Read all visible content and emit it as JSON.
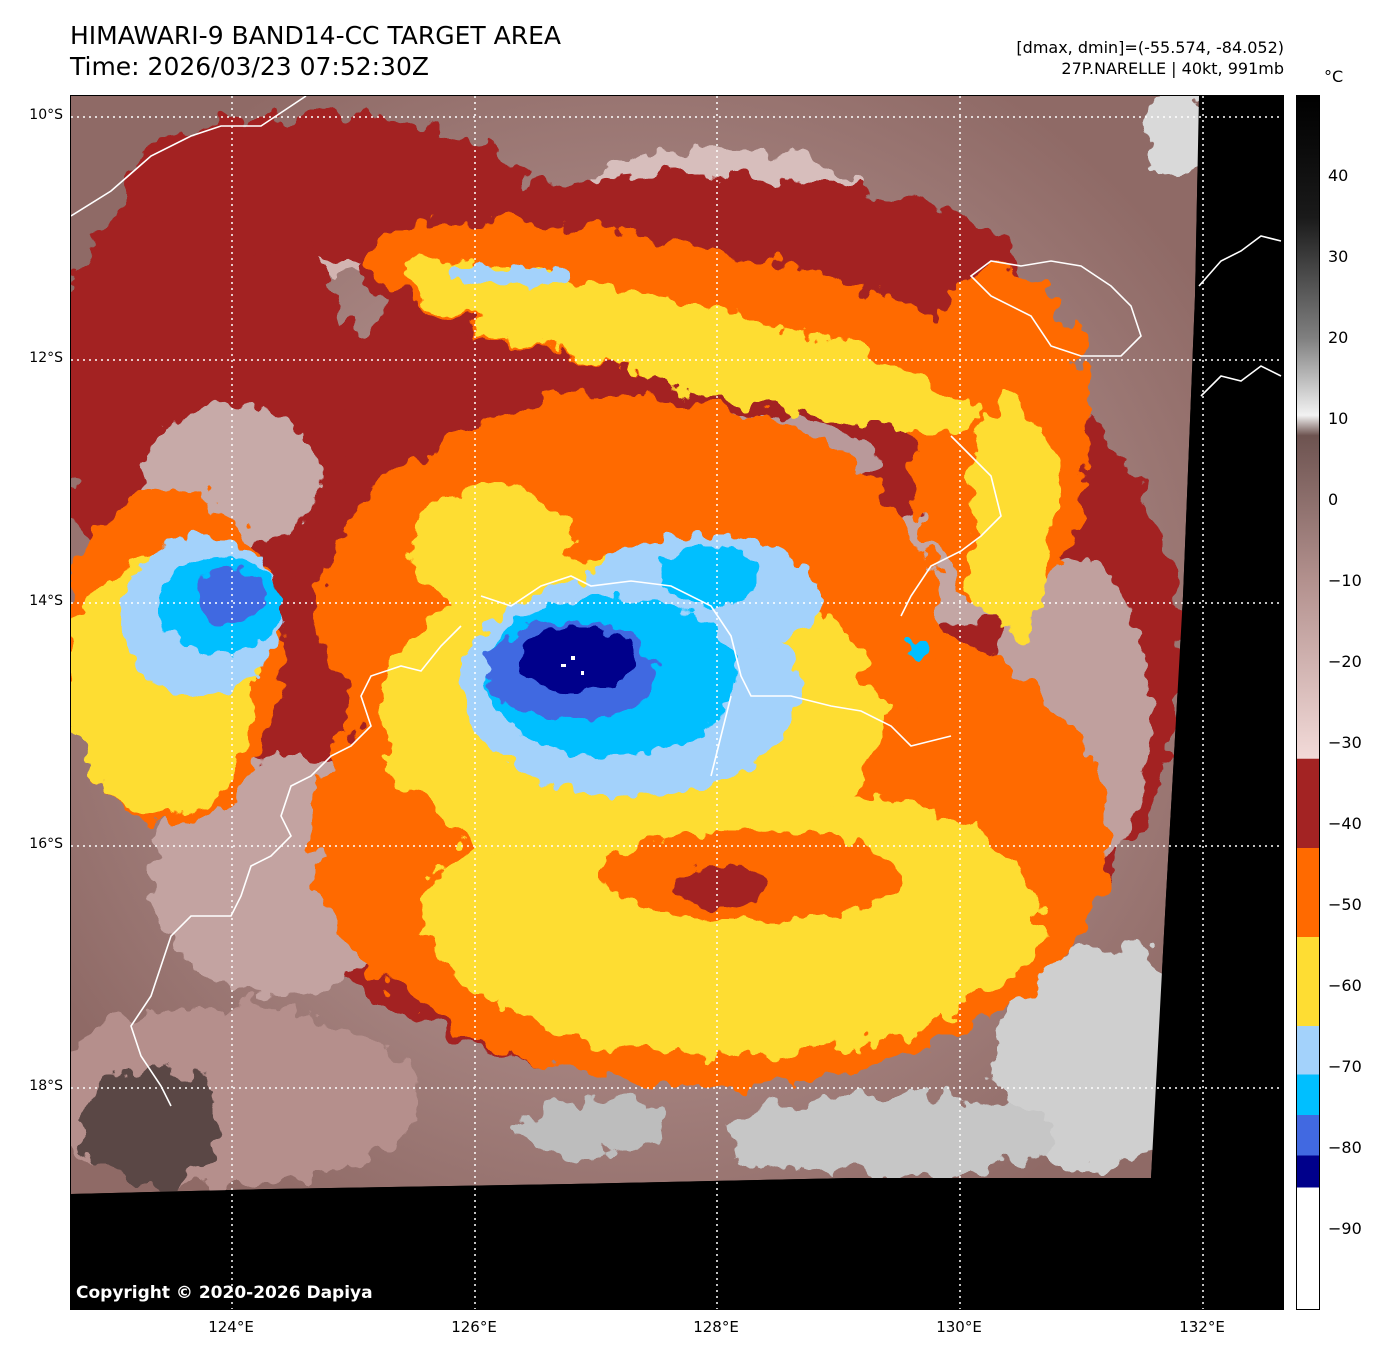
{
  "header": {
    "title": "HIMAWARI-9 BAND14-CC TARGET AREA",
    "time": "Time: 2026/03/23 07:52:30Z",
    "range": "[dmax, dmin]=(-55.574, -84.052)",
    "storm": "27P.NARELLE | 40kt, 991mb"
  },
  "map": {
    "copyright": "Copyright © 2020-2026 Dapiya",
    "lat_labels": [
      "10°S",
      "12°S",
      "14°S",
      "16°S",
      "18°S"
    ],
    "lon_labels": [
      "124°E",
      "126°E",
      "128°E",
      "130°E",
      "132°E"
    ],
    "gridline_style": "dotted white",
    "coastline_color": "#ffffff",
    "no_data_color": "#000000"
  },
  "colorbar": {
    "unit": "°C",
    "ticks": [
      "40",
      "30",
      "20",
      "10",
      "0",
      "−10",
      "−20",
      "−30",
      "−40",
      "−50",
      "−60",
      "−70",
      "−80",
      "−90"
    ],
    "range": [
      -100,
      50
    ],
    "bands": [
      {
        "from": -100,
        "to": -85,
        "color": "#ffffff"
      },
      {
        "from": -85,
        "to": -81,
        "color": "#00008b"
      },
      {
        "from": -81,
        "to": -76,
        "color": "#4169e1"
      },
      {
        "from": -76,
        "to": -71,
        "color": "#00bfff"
      },
      {
        "from": -71,
        "to": -65,
        "color": "#a3d2fb"
      },
      {
        "from": -65,
        "to": -54,
        "color": "#fedd33"
      },
      {
        "from": -54,
        "to": -43,
        "color": "#ff6a00"
      },
      {
        "from": -43,
        "to": -32,
        "color": "#a32323"
      }
    ]
  }
}
